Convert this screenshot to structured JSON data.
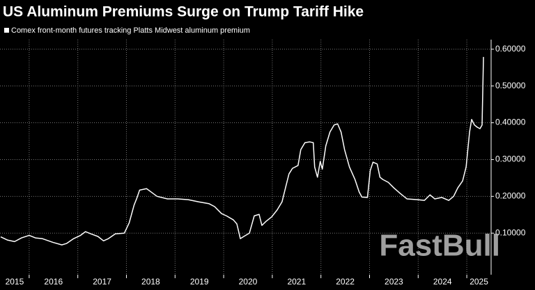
{
  "chart_data": {
    "type": "line",
    "title": "US Aluminum Premiums Surge on Trump Tariff Hike",
    "watermark": "FastBull",
    "x": [
      2015.414,
      2015.557,
      2015.7,
      2015.843,
      2016.0,
      2016.129,
      2016.271,
      2016.486,
      2016.671,
      2016.771,
      2016.914,
      2017.057,
      2017.157,
      2017.271,
      2017.414,
      2017.529,
      2017.629,
      2017.771,
      2017.957,
      2018.057,
      2018.157,
      2018.214,
      2018.271,
      2018.414,
      2018.486,
      2018.629,
      2018.843,
      2019.057,
      2019.271,
      2019.486,
      2019.7,
      2019.814,
      2019.957,
      2020.057,
      2020.2,
      2020.271,
      2020.343,
      2020.414,
      2020.529,
      2020.629,
      2020.729,
      2020.786,
      2020.871,
      2020.986,
      2021.1,
      2021.2,
      2021.271,
      2021.343,
      2021.414,
      2021.529,
      2021.586,
      2021.671,
      2021.771,
      2021.843,
      2021.871,
      2021.929,
      2021.986,
      2022.029,
      2022.1,
      2022.186,
      2022.271,
      2022.343,
      2022.414,
      2022.486,
      2022.586,
      2022.7,
      2022.786,
      2022.843,
      2022.957,
      2023.014,
      2023.071,
      2023.157,
      2023.214,
      2023.271,
      2023.386,
      2023.5,
      2023.629,
      2023.771,
      2023.986,
      2024.129,
      2024.243,
      2024.343,
      2024.486,
      2024.629,
      2024.729,
      2024.814,
      2024.914,
      2024.986,
      2025.057,
      2025.1,
      2025.157,
      2025.214,
      2025.271,
      2025.314,
      2025.343
    ],
    "series": [
      {
        "name": "Comex front-month futures tracking Platts Midwest aluminum premium",
        "color": "#ffffff",
        "values": [
          0.09,
          0.081,
          0.077,
          0.087,
          0.094,
          0.087,
          0.085,
          0.075,
          0.068,
          0.072,
          0.085,
          0.094,
          0.104,
          0.098,
          0.091,
          0.079,
          0.085,
          0.098,
          0.1,
          0.128,
          0.176,
          0.195,
          0.217,
          0.221,
          0.214,
          0.2,
          0.193,
          0.193,
          0.191,
          0.185,
          0.18,
          0.172,
          0.153,
          0.147,
          0.136,
          0.125,
          0.085,
          0.091,
          0.1,
          0.147,
          0.151,
          0.121,
          0.132,
          0.144,
          0.163,
          0.185,
          0.223,
          0.261,
          0.276,
          0.284,
          0.327,
          0.346,
          0.348,
          0.346,
          0.28,
          0.252,
          0.295,
          0.274,
          0.337,
          0.375,
          0.394,
          0.397,
          0.375,
          0.327,
          0.28,
          0.246,
          0.212,
          0.198,
          0.197,
          0.27,
          0.293,
          0.288,
          0.252,
          0.246,
          0.238,
          0.223,
          0.208,
          0.193,
          0.191,
          0.189,
          0.204,
          0.193,
          0.197,
          0.189,
          0.2,
          0.223,
          0.242,
          0.28,
          0.375,
          0.409,
          0.394,
          0.388,
          0.384,
          0.394,
          0.579
        ]
      }
    ],
    "xlim": [
      2015.4,
      2025.5
    ],
    "xticks": [
      2015,
      2016,
      2017,
      2018,
      2019,
      2020,
      2021,
      2022,
      2023,
      2024,
      2025
    ],
    "ylim": [
      -0.013,
      0.626
    ],
    "yticks": [
      {
        "value": 0.1,
        "label": "0.10000"
      },
      {
        "value": 0.2,
        "label": "0.20000"
      },
      {
        "value": 0.3,
        "label": "0.30000"
      },
      {
        "value": 0.4,
        "label": "0.40000"
      },
      {
        "value": 0.5,
        "label": "0.50000"
      },
      {
        "value": 0.6,
        "label": "0.60000"
      }
    ],
    "grid": true
  }
}
